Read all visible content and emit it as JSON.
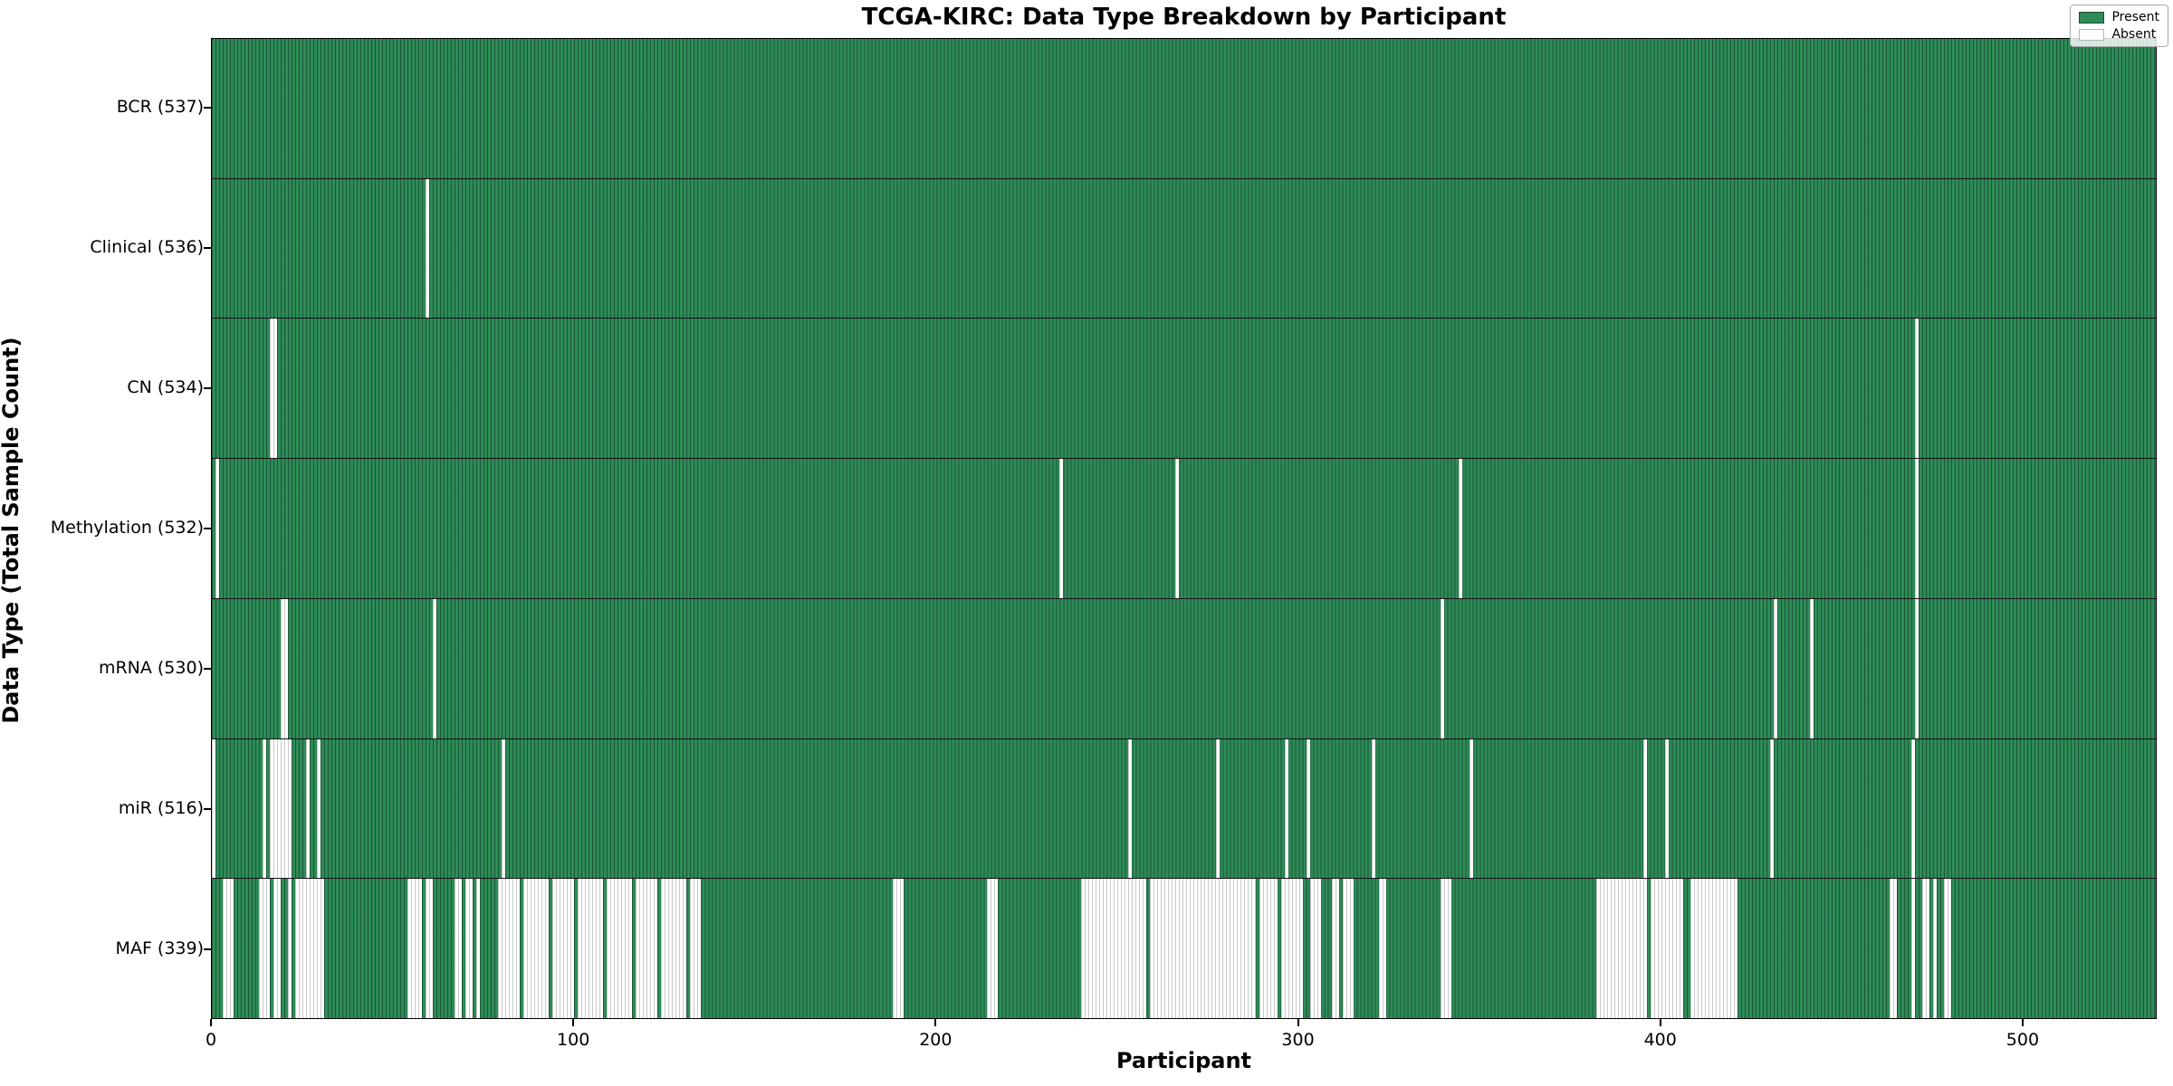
{
  "title": "TCGA-KIRC: Data Type Breakdown by Participant",
  "chart_data": {
    "type": "heatmap",
    "title": "TCGA-KIRC: Data Type Breakdown by Participant",
    "xlabel": "Participant",
    "ylabel": "Data Type (Total Sample Count)",
    "n_participants": 537,
    "x_ticks": [
      0,
      100,
      200,
      300,
      400,
      500
    ],
    "grid": false,
    "legend_position": "upper right",
    "legend": [
      {
        "label": "Present",
        "color": "#2e8b57"
      },
      {
        "label": "Absent",
        "color": "#ffffff"
      }
    ],
    "colors": {
      "present_fill": "#2e8b57",
      "present_edge": "#0a2d1c",
      "absent_fill": "#ffffff",
      "absent_edge": "#c9c9c9",
      "row_separator": "#141414",
      "axis": "#000000"
    },
    "rows": [
      {
        "label": "BCR (537)",
        "data_type": "BCR",
        "present_count": 537,
        "absent_ranges": []
      },
      {
        "label": "Clinical (536)",
        "data_type": "Clinical",
        "present_count": 536,
        "absent_ranges": [
          [
            59,
            59
          ]
        ]
      },
      {
        "label": "CN (534)",
        "data_type": "CN",
        "present_count": 534,
        "absent_ranges": [
          [
            16,
            17
          ],
          [
            470,
            470
          ]
        ]
      },
      {
        "label": "Methylation (532)",
        "data_type": "Methylation",
        "present_count": 532,
        "absent_ranges": [
          [
            1,
            1
          ],
          [
            234,
            234
          ],
          [
            266,
            266
          ],
          [
            344,
            344
          ],
          [
            470,
            470
          ]
        ]
      },
      {
        "label": "mRNA (530)",
        "data_type": "mRNA",
        "present_count": 530,
        "absent_ranges": [
          [
            19,
            20
          ],
          [
            61,
            61
          ],
          [
            339,
            339
          ],
          [
            431,
            431
          ],
          [
            441,
            441
          ],
          [
            470,
            470
          ]
        ]
      },
      {
        "label": "miR (516)",
        "data_type": "miR",
        "present_count": 516,
        "absent_ranges": [
          [
            0,
            0
          ],
          [
            14,
            14
          ],
          [
            16,
            21
          ],
          [
            26,
            26
          ],
          [
            29,
            29
          ],
          [
            80,
            80
          ],
          [
            253,
            253
          ],
          [
            277,
            277
          ],
          [
            296,
            296
          ],
          [
            302,
            302
          ],
          [
            320,
            320
          ],
          [
            347,
            347
          ],
          [
            395,
            395
          ],
          [
            401,
            401
          ],
          [
            430,
            430
          ],
          [
            469,
            469
          ]
        ]
      },
      {
        "label": "MAF (339)",
        "data_type": "MAF",
        "present_count": 339,
        "absent_ranges": [
          [
            3,
            5
          ],
          [
            13,
            15
          ],
          [
            17,
            18
          ],
          [
            21,
            21
          ],
          [
            23,
            30
          ],
          [
            54,
            57
          ],
          [
            59,
            60
          ],
          [
            67,
            68
          ],
          [
            70,
            71
          ],
          [
            73,
            73
          ],
          [
            79,
            84
          ],
          [
            86,
            92
          ],
          [
            94,
            99
          ],
          [
            101,
            107
          ],
          [
            109,
            115
          ],
          [
            117,
            122
          ],
          [
            124,
            130
          ],
          [
            132,
            134
          ],
          [
            188,
            190
          ],
          [
            214,
            216
          ],
          [
            240,
            257
          ],
          [
            259,
            287
          ],
          [
            289,
            293
          ],
          [
            295,
            300
          ],
          [
            303,
            305
          ],
          [
            309,
            310
          ],
          [
            312,
            314
          ],
          [
            322,
            323
          ],
          [
            339,
            341
          ],
          [
            382,
            395
          ],
          [
            397,
            405
          ],
          [
            408,
            420
          ],
          [
            463,
            464
          ],
          [
            469,
            469
          ],
          [
            472,
            473
          ],
          [
            475,
            475
          ],
          [
            478,
            479
          ]
        ]
      }
    ]
  }
}
